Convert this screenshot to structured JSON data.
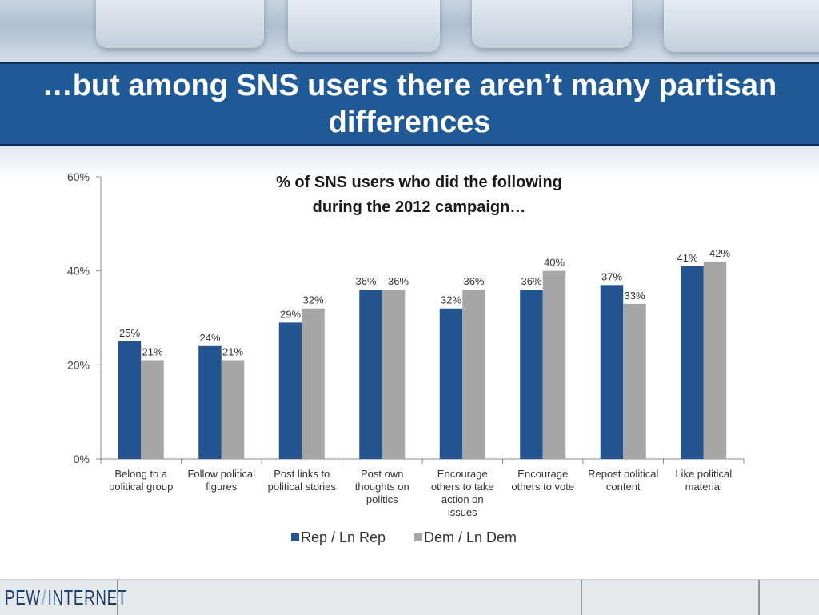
{
  "slide": {
    "title": "…but among SNS users there aren’t many partisan differences"
  },
  "logo": {
    "part1": "PEW",
    "slash": "/",
    "part2": "INTERNET"
  },
  "chart_data": {
    "type": "bar",
    "title": "% of SNS users who did the following during the 2012 campaign…",
    "title_lines": [
      "% of SNS users who did the following",
      "during the 2012 campaign…"
    ],
    "categories": [
      [
        "Belong to a",
        "political group"
      ],
      [
        "Follow political",
        "figures"
      ],
      [
        "Post links to",
        "political stories"
      ],
      [
        "Post own",
        "thoughts on",
        "politics"
      ],
      [
        "Encourage",
        "others to take",
        "action on",
        "issues"
      ],
      [
        "Encourage",
        "others to vote"
      ],
      [
        "Repost political",
        "content"
      ],
      [
        "Like political",
        "material"
      ]
    ],
    "series": [
      {
        "name": "Rep / Ln Rep",
        "color": "#24548f",
        "values": [
          25,
          24,
          29,
          36,
          32,
          36,
          37,
          41
        ]
      },
      {
        "name": "Dem / Ln Dem",
        "color": "#a6a6a6",
        "values": [
          21,
          21,
          32,
          36,
          36,
          40,
          33,
          42
        ]
      }
    ],
    "ylim": [
      0,
      60
    ],
    "yticks": [
      0,
      20,
      40,
      60
    ],
    "ytick_labels": [
      "0%",
      "20%",
      "40%",
      "60%"
    ],
    "value_suffix": "%",
    "legend_position": "bottom",
    "grid": false
  }
}
